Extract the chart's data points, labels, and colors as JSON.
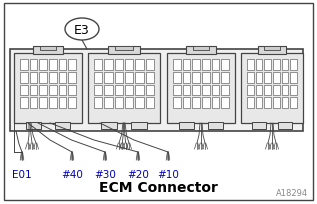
{
  "title": "ECM Connector",
  "label_e3": "E3",
  "labels": [
    "E01",
    "#40",
    "#30",
    "#20",
    "#10"
  ],
  "label_colors": [
    "#0000bb",
    "#0000bb",
    "#0000bb",
    "#0000bb",
    "#0000bb"
  ],
  "watermark": "A18294",
  "bg_color": "#ffffff",
  "line_color": "#444444",
  "title_fontsize": 10,
  "label_fontsize": 7.5,
  "watermark_fontsize": 6
}
